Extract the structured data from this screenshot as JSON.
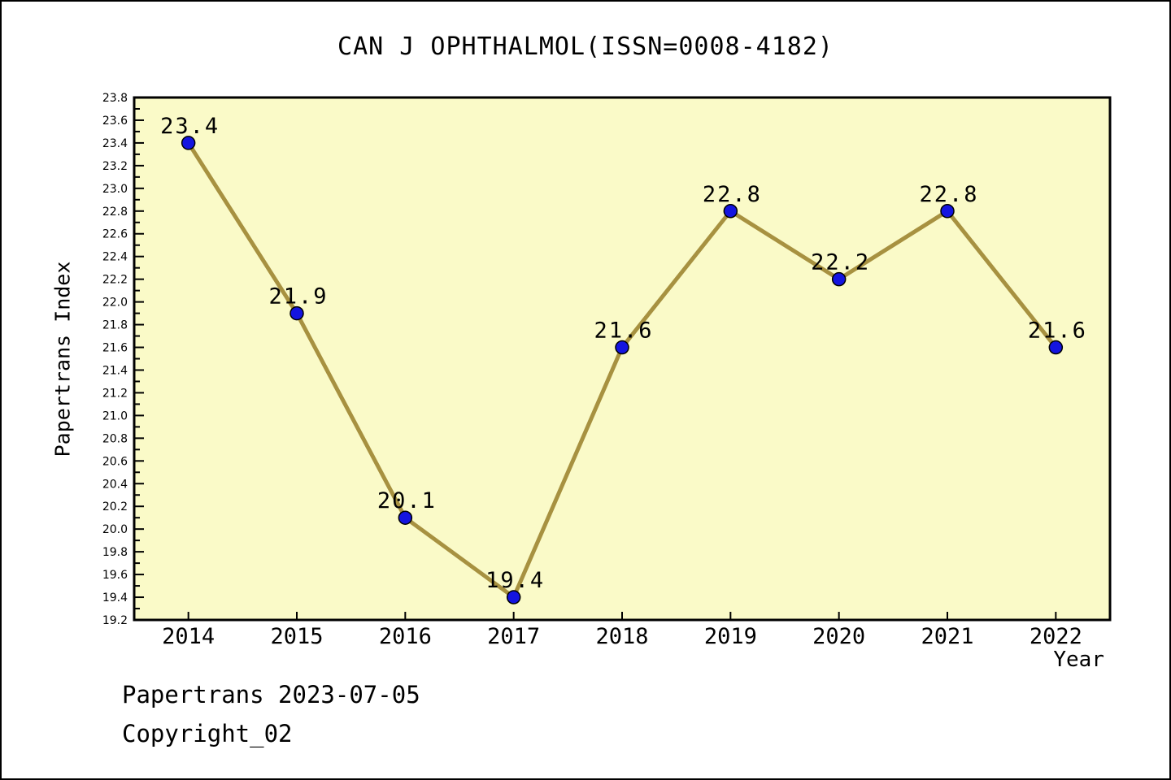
{
  "chart_data": {
    "type": "line",
    "title": "CAN J OPHTHALMOL(ISSN=0008-4182)",
    "xlabel": "Year",
    "ylabel": "Papertrans Index",
    "x": [
      2014,
      2015,
      2016,
      2017,
      2018,
      2019,
      2020,
      2021,
      2022
    ],
    "series": [
      {
        "name": "Papertrans Index",
        "values": [
          23.4,
          21.9,
          20.1,
          19.4,
          21.6,
          22.8,
          22.2,
          22.8,
          21.6
        ]
      }
    ],
    "point_labels": [
      "23.4",
      "21.9",
      "20.1",
      "19.4",
      "21.6",
      "22.8",
      "22.2",
      "22.8",
      "21.6"
    ],
    "xlim": [
      2013.5,
      2022.5
    ],
    "ylim": [
      19.2,
      23.8
    ],
    "y_major_step": 0.2,
    "y_minor_step": 0.1,
    "grid": false,
    "legend": null,
    "colors": {
      "plot_background": "#FAFAC8",
      "line": "#A79140",
      "marker_fill": "#1414E0",
      "marker_edge": "#000000",
      "axis": "#000000",
      "text": "#000000"
    }
  },
  "footer": {
    "line1": "Papertrans 2023-07-05",
    "line2": "Copyright_02"
  }
}
